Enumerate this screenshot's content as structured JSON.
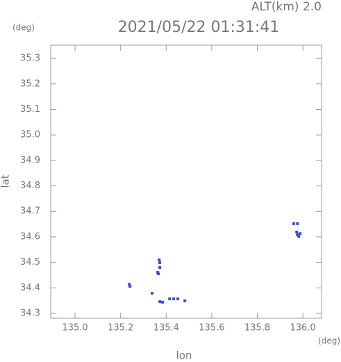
{
  "chart_data": {
    "type": "scatter",
    "title": "2021/05/22 01:31:41",
    "subtitle": "ALT(km) 2.0",
    "xlabel": "lon",
    "ylabel": "lat",
    "x_unit": "(deg)",
    "y_unit": "(deg)",
    "color": "#3a4fe0",
    "x": [
      135.363,
      135.366,
      135.372,
      135.372,
      135.369,
      135.238,
      135.241,
      135.338,
      135.372,
      135.384,
      135.415,
      135.433,
      135.451,
      135.482,
      135.976,
      135.982,
      135.988,
      135.973,
      135.96,
      135.976
    ],
    "values": [
      34.461,
      34.455,
      34.48,
      34.499,
      34.51,
      34.414,
      34.406,
      34.379,
      34.346,
      34.344,
      34.357,
      34.357,
      34.357,
      34.349,
      34.608,
      34.602,
      34.613,
      34.619,
      34.652,
      34.652
    ],
    "xlim": [
      134.893,
      136.082
    ],
    "ylim": [
      34.281,
      35.352
    ],
    "xticks": [
      {
        "value": 135,
        "label": "135.0"
      },
      135.2,
      135.4,
      135.6,
      135.8,
      {
        "value": 136,
        "label": "136.0"
      }
    ],
    "yticks": [
      34.3,
      34.4,
      34.5,
      34.6,
      34.7,
      34.8,
      34.9,
      {
        "value": 35,
        "label": "35.0"
      },
      35.1,
      35.2,
      35.3
    ]
  }
}
